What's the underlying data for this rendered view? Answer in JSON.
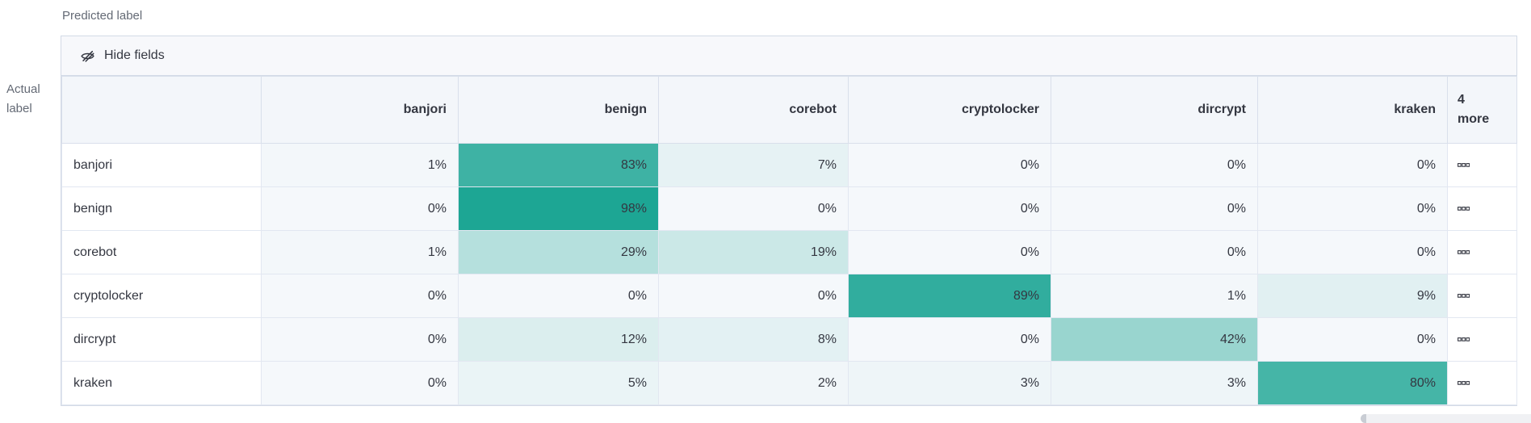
{
  "axes": {
    "predicted": "Predicted label",
    "actual": "Actual\nlabel"
  },
  "toolbar": {
    "hide_fields_label": "Hide fields",
    "hide_fields_icon": "eye-closed-icon"
  },
  "chart_data": {
    "type": "heatmap",
    "columns": [
      "banjori",
      "benign",
      "corebot",
      "cryptolocker",
      "dircrypt",
      "kraken"
    ],
    "hidden_columns_indicator": {
      "count": "4",
      "label": "more",
      "icon": "boxes-horizontal-icon"
    },
    "rows": [
      {
        "label": "banjori",
        "values_pct": [
          1,
          83,
          7,
          0,
          0,
          0
        ]
      },
      {
        "label": "benign",
        "values_pct": [
          0,
          98,
          0,
          0,
          0,
          0
        ]
      },
      {
        "label": "corebot",
        "values_pct": [
          1,
          29,
          19,
          0,
          0,
          0
        ]
      },
      {
        "label": "cryptolocker",
        "values_pct": [
          0,
          0,
          0,
          89,
          1,
          9
        ]
      },
      {
        "label": "dircrypt",
        "values_pct": [
          0,
          12,
          8,
          0,
          42,
          0
        ]
      },
      {
        "label": "kraken",
        "values_pct": [
          0,
          5,
          2,
          3,
          3,
          80
        ]
      }
    ],
    "value_suffix": "%",
    "colors": {
      "heat_accent": "#19a492",
      "heat_zero_bg": "#f5f8fb",
      "cell_text": "#343741",
      "header_bg": "#f3f6fa",
      "controls_bg": "#f7f8fb",
      "border": "#d3dae6"
    },
    "legend_position": "none",
    "grid_lines": true
  }
}
